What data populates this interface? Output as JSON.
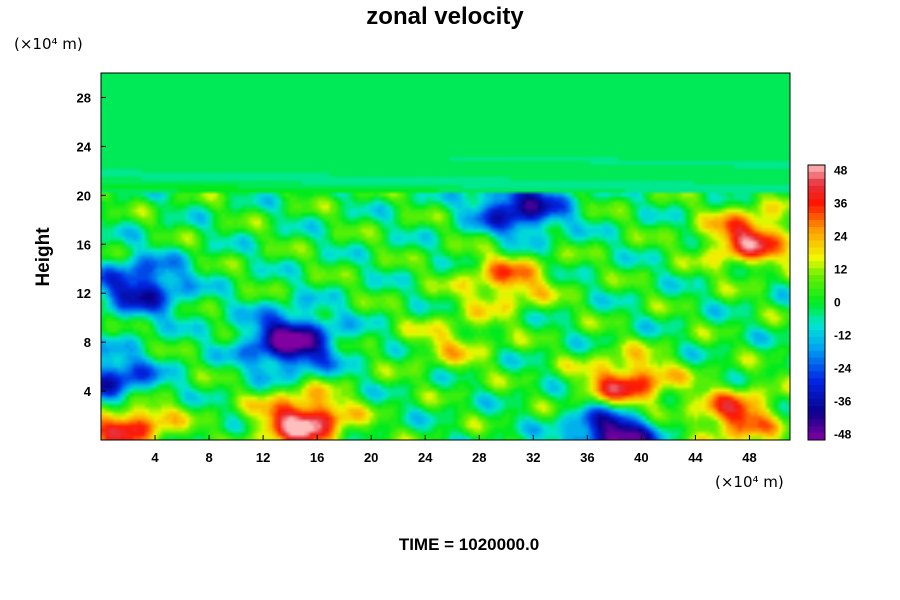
{
  "chart_data": {
    "type": "heatmap",
    "title": "zonal velocity",
    "xlabel": "",
    "ylabel": "Height",
    "x_unit": "(×10⁴ m)",
    "y_unit": "(×10⁴ m)",
    "xlim": [
      0,
      51
    ],
    "ylim": [
      0,
      30
    ],
    "x_ticks": [
      4,
      8,
      12,
      16,
      20,
      24,
      28,
      32,
      36,
      40,
      44,
      48
    ],
    "y_ticks": [
      4,
      8,
      12,
      16,
      20,
      24,
      28
    ],
    "grid": false,
    "colorbar": {
      "ticks": [
        48,
        36,
        24,
        12,
        0,
        -12,
        -24,
        -36,
        -48
      ],
      "range": [
        -50,
        50
      ],
      "interval": 2.5,
      "colormap": "rainbow: violet-blue-cyan-green-yellow-red-pink"
    },
    "features": [
      {
        "x": 14,
        "y": 8,
        "value": -50
      },
      {
        "x": 38,
        "y": 0.5,
        "value": -50
      },
      {
        "x": 31,
        "y": 19,
        "value": -40
      },
      {
        "x": 3,
        "y": 12.5,
        "value": -36
      },
      {
        "x": 1,
        "y": 4.5,
        "value": -38
      },
      {
        "x": 15,
        "y": 1.5,
        "value": 50
      },
      {
        "x": 2,
        "y": 1.5,
        "value": 42
      },
      {
        "x": 39,
        "y": 4.5,
        "value": 40
      },
      {
        "x": 48,
        "y": 16.5,
        "value": 40
      },
      {
        "x": 30,
        "y": 13,
        "value": 28
      },
      {
        "x": 26,
        "y": 8,
        "value": 16
      },
      {
        "x": 47,
        "y": 2,
        "value": 34
      }
    ],
    "caption": "TIME = 1020000.0"
  }
}
